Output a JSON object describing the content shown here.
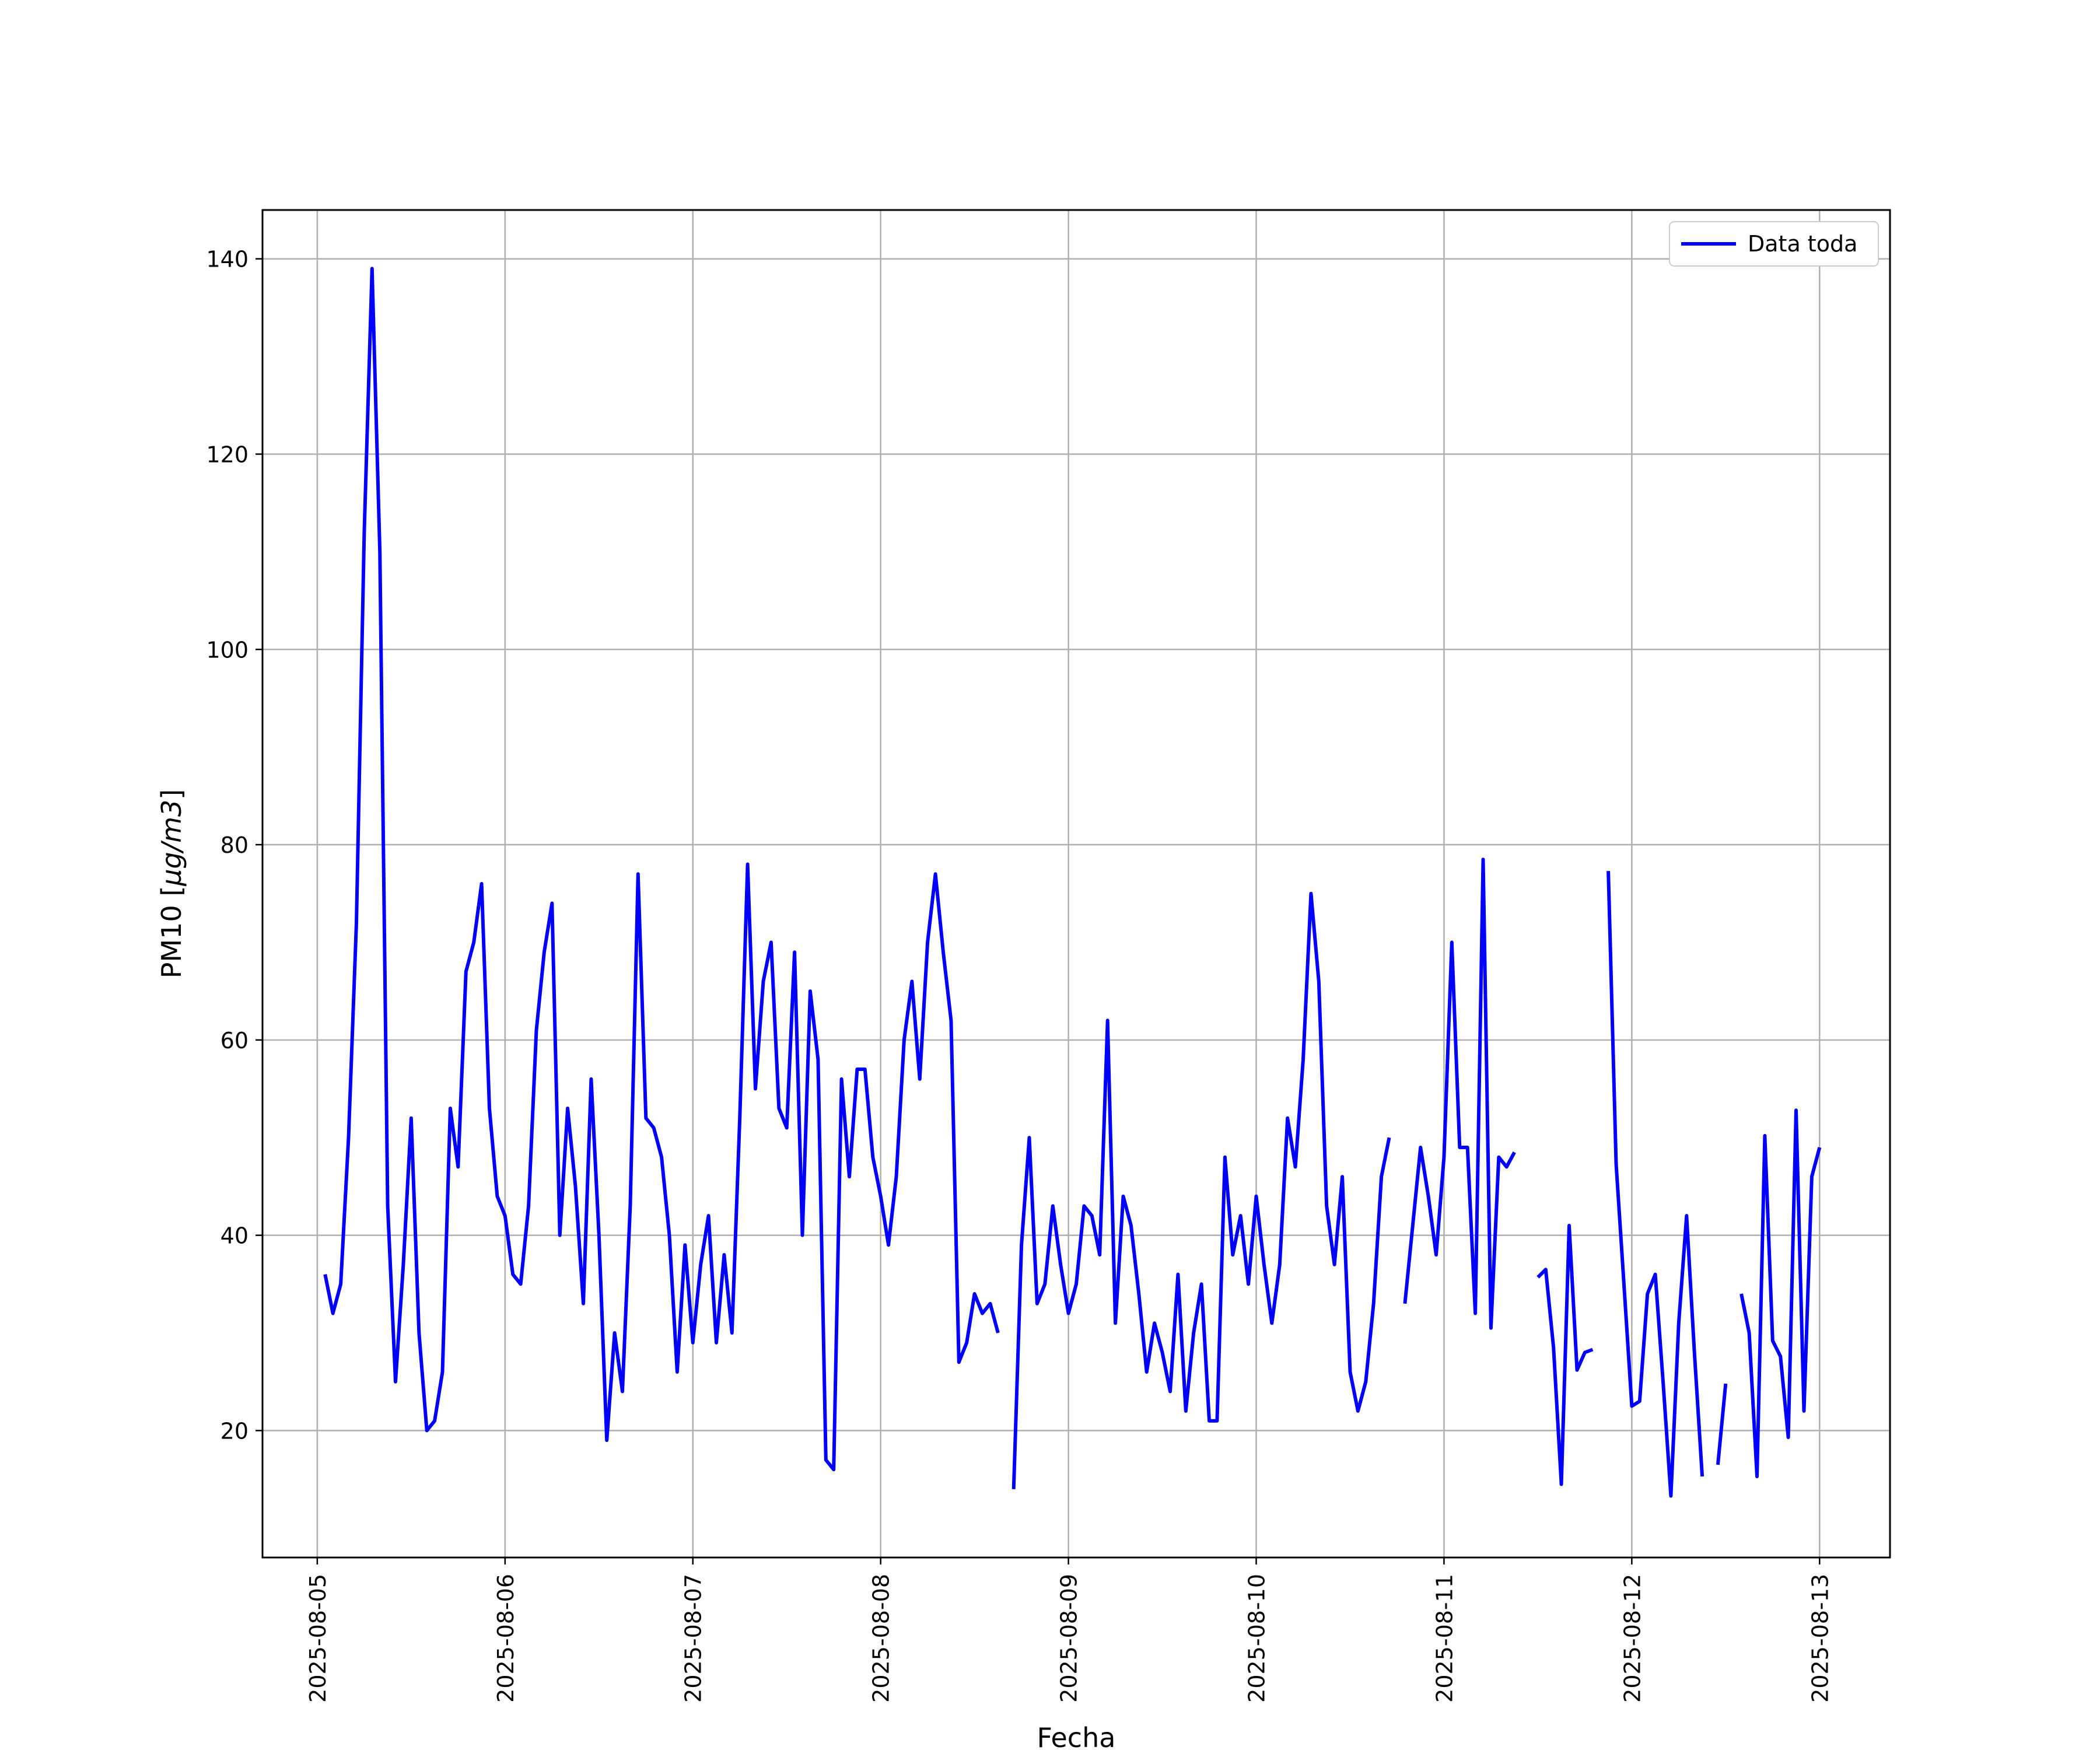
{
  "chart_data": {
    "type": "line",
    "xlabel": "Fecha",
    "ylabel_prefix": "PM10 [",
    "ylabel_unit": "µg/m3",
    "ylabel_suffix": "]",
    "ylim": [
      7,
      145
    ],
    "xlim": [
      "2025-08-04 17:00",
      "2025-08-13 09:00"
    ],
    "yticks": [
      20,
      40,
      60,
      80,
      100,
      120,
      140
    ],
    "xticks": [
      "2025-08-05",
      "2025-08-06",
      "2025-08-07",
      "2025-08-08",
      "2025-08-09",
      "2025-08-10",
      "2025-08-11",
      "2025-08-12",
      "2025-08-13"
    ],
    "grid": true,
    "legend_position": "top-right",
    "series": [
      {
        "name": "Data toda",
        "color": "#0000ff",
        "x": [
          "2025-08-05 01:00",
          "2025-08-05 02:00",
          "2025-08-05 03:00",
          "2025-08-05 04:00",
          "2025-08-05 05:00",
          "2025-08-05 06:00",
          "2025-08-05 07:00",
          "2025-08-05 08:00",
          "2025-08-05 09:00",
          "2025-08-05 10:00",
          "2025-08-05 11:00",
          "2025-08-05 12:00",
          "2025-08-05 13:00",
          "2025-08-05 14:00",
          "2025-08-05 15:00",
          "2025-08-05 16:00",
          "2025-08-05 17:00",
          "2025-08-05 18:00",
          "2025-08-05 19:00",
          "2025-08-05 20:00",
          "2025-08-05 21:00",
          "2025-08-05 22:00",
          "2025-08-05 23:00",
          "2025-08-06 00:00",
          "2025-08-06 01:00",
          "2025-08-06 02:00",
          "2025-08-06 03:00",
          "2025-08-06 04:00",
          "2025-08-06 05:00",
          "2025-08-06 06:00",
          "2025-08-06 07:00",
          "2025-08-06 08:00",
          "2025-08-06 09:00",
          "2025-08-06 10:00",
          "2025-08-06 11:00",
          "2025-08-06 12:00",
          "2025-08-06 13:00",
          "2025-08-06 14:00",
          "2025-08-06 15:00",
          "2025-08-06 16:00",
          "2025-08-06 17:00",
          "2025-08-06 18:00",
          "2025-08-06 19:00",
          "2025-08-06 20:00",
          "2025-08-06 21:00",
          "2025-08-06 22:00",
          "2025-08-06 23:00",
          "2025-08-07 00:00",
          "2025-08-07 01:00",
          "2025-08-07 02:00",
          "2025-08-07 03:00",
          "2025-08-07 04:00",
          "2025-08-07 05:00",
          "2025-08-07 06:00",
          "2025-08-07 07:00",
          "2025-08-07 08:00",
          "2025-08-07 09:00",
          "2025-08-07 10:00",
          "2025-08-07 11:00",
          "2025-08-07 12:00",
          "2025-08-07 13:00",
          "2025-08-07 14:00",
          "2025-08-07 15:00",
          "2025-08-07 16:00",
          "2025-08-07 17:00",
          "2025-08-07 18:00",
          "2025-08-07 19:00",
          "2025-08-07 20:00",
          "2025-08-07 21:00",
          "2025-08-07 22:00",
          "2025-08-07 23:00",
          "2025-08-08 00:00",
          "2025-08-08 01:00",
          "2025-08-08 02:00",
          "2025-08-08 03:00",
          "2025-08-08 04:00",
          "2025-08-08 05:00",
          "2025-08-08 06:00",
          "2025-08-08 07:00",
          "2025-08-08 08:00",
          "2025-08-08 09:00",
          "2025-08-08 10:00",
          "2025-08-08 11:00",
          "2025-08-08 12:00",
          "2025-08-08 13:00",
          "2025-08-08 14:00",
          "2025-08-08 15:00",
          null,
          "2025-08-08 17:00",
          "2025-08-08 18:00",
          "2025-08-08 19:00",
          "2025-08-08 20:00",
          "2025-08-08 21:00",
          "2025-08-08 22:00",
          "2025-08-08 23:00",
          "2025-08-09 00:00",
          "2025-08-09 01:00",
          "2025-08-09 02:00",
          "2025-08-09 03:00",
          "2025-08-09 04:00",
          "2025-08-09 05:00",
          "2025-08-09 06:00",
          "2025-08-09 07:00",
          "2025-08-09 08:00",
          "2025-08-09 09:00",
          "2025-08-09 10:00",
          "2025-08-09 11:00",
          "2025-08-09 12:00",
          "2025-08-09 13:00",
          "2025-08-09 14:00",
          "2025-08-09 15:00",
          "2025-08-09 16:00",
          "2025-08-09 17:00",
          "2025-08-09 18:00",
          "2025-08-09 19:00",
          "2025-08-09 20:00",
          "2025-08-09 21:00",
          "2025-08-09 22:00",
          "2025-08-09 23:00",
          "2025-08-10 00:00",
          "2025-08-10 01:00",
          "2025-08-10 02:00",
          "2025-08-10 03:00",
          "2025-08-10 04:00",
          "2025-08-10 05:00",
          "2025-08-10 06:00",
          "2025-08-10 07:00",
          "2025-08-10 08:00",
          "2025-08-10 09:00",
          "2025-08-10 10:00",
          "2025-08-10 11:00",
          "2025-08-10 12:00",
          "2025-08-10 13:00",
          "2025-08-10 14:00",
          "2025-08-10 15:00",
          "2025-08-10 16:00",
          "2025-08-10 17:00",
          null,
          "2025-08-10 19:00",
          "2025-08-10 20:00",
          "2025-08-10 21:00",
          "2025-08-10 22:00",
          "2025-08-10 23:00",
          "2025-08-11 00:00",
          "2025-08-11 01:00",
          "2025-08-11 02:00",
          "2025-08-11 03:00",
          "2025-08-11 04:00",
          "2025-08-11 05:00",
          "2025-08-11 06:00",
          "2025-08-11 07:00",
          "2025-08-11 08:00",
          "2025-08-11 09:00",
          null,
          "2025-08-11 12:00",
          "2025-08-11 13:00",
          "2025-08-11 14:00",
          "2025-08-11 15:00",
          "2025-08-11 16:00",
          "2025-08-11 17:00",
          "2025-08-11 18:00",
          "2025-08-11 19:00",
          null,
          "2025-08-11 21:00",
          "2025-08-11 22:00",
          "2025-08-11 23:00",
          "2025-08-12 00:00",
          "2025-08-12 01:00",
          "2025-08-12 02:00",
          "2025-08-12 03:00",
          "2025-08-12 04:00",
          "2025-08-12 05:00",
          "2025-08-12 06:00",
          "2025-08-12 07:00",
          "2025-08-12 08:00",
          "2025-08-12 09:00",
          null,
          "2025-08-12 11:00",
          "2025-08-12 12:00",
          null,
          "2025-08-12 14:00",
          "2025-08-12 15:00",
          "2025-08-12 16:00",
          "2025-08-12 17:00",
          "2025-08-12 18:00",
          "2025-08-12 19:00",
          "2025-08-12 20:00",
          "2025-08-12 21:00",
          "2025-08-12 22:00",
          "2025-08-12 23:00",
          "2025-08-13 00:00"
        ],
        "y": [
          36,
          32,
          35,
          50,
          72,
          112,
          139,
          110,
          43,
          25,
          37,
          52,
          30,
          20,
          21,
          26,
          53,
          47,
          67,
          70,
          76,
          53,
          44,
          42,
          36,
          35,
          43,
          61,
          69,
          74,
          40,
          53,
          45,
          33,
          56,
          40,
          19,
          30,
          24,
          43,
          77,
          52,
          51,
          48,
          40,
          26,
          39,
          29,
          37,
          42,
          29,
          38,
          30,
          52,
          78,
          55,
          66,
          70,
          53,
          51,
          69,
          40,
          65,
          58,
          17,
          16,
          56,
          46,
          57,
          57,
          48,
          44,
          39,
          46,
          60,
          66,
          56,
          70,
          77,
          69,
          62,
          27,
          29,
          34,
          32,
          33,
          30,
          null,
          14,
          39,
          50,
          33,
          35,
          43,
          37,
          32,
          35,
          43,
          42,
          38,
          62,
          31,
          44,
          41,
          34,
          26,
          31,
          28,
          24,
          36,
          22,
          30,
          35,
          21,
          21,
          48,
          38,
          42,
          35,
          44,
          37,
          31,
          37,
          52,
          47,
          58,
          75,
          66,
          43,
          37,
          46,
          26,
          22,
          25,
          33,
          46,
          50,
          null,
          33,
          41,
          49,
          44,
          38,
          48,
          70,
          49,
          49,
          32,
          78.5,
          30.5,
          48,
          47,
          48.5,
          null,
          35.7,
          36.5,
          28.5,
          14.5,
          41,
          26.2,
          28,
          28.3,
          null,
          77.3,
          47.3,
          35,
          22.5,
          23,
          34,
          36,
          25,
          13.3,
          31,
          42,
          28,
          15.3,
          null,
          16.5,
          24.8,
          null,
          34,
          30,
          15.3,
          50.2,
          29.2,
          27.6,
          19.3,
          52.8,
          22,
          46,
          49
        ]
      }
    ]
  }
}
